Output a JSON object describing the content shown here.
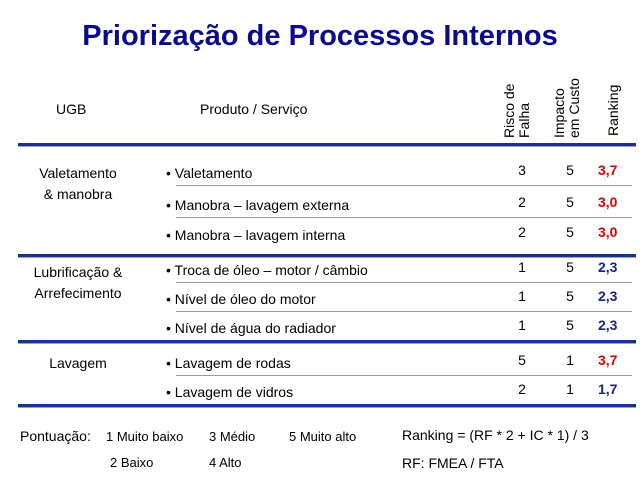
{
  "title": "Priorização de Processos Internos",
  "headers": {
    "ugb": "UGB",
    "produto": "Produto / Serviço",
    "risco": [
      "Risco de",
      "Falha"
    ],
    "impacto": [
      "Impacto",
      "em Custo"
    ],
    "ranking": "Ranking"
  },
  "colors": {
    "title": "#0a0a8c",
    "rank_high": "#e00000",
    "rank_low": "#1a237e",
    "rule": "#1d2f8f"
  },
  "groups": [
    {
      "ugb": [
        "Valetamento",
        "& manobra"
      ],
      "items": [
        {
          "name": "• Valetamento",
          "rf": "3",
          "ic": "5",
          "ranking": "3,7",
          "level": "high"
        },
        {
          "name": "• Manobra – lavagem externa",
          "rf": "2",
          "ic": "5",
          "ranking": "3,0",
          "level": "high"
        },
        {
          "name": "• Manobra – lavagem interna",
          "rf": "2",
          "ic": "5",
          "ranking": "3,0",
          "level": "high"
        }
      ]
    },
    {
      "ugb": [
        "Lubrificação &",
        "Arrefecimento"
      ],
      "items": [
        {
          "name": "• Troca de óleo – motor / câmbio",
          "rf": "1",
          "ic": "5",
          "ranking": "2,3",
          "level": "low"
        },
        {
          "name": "• Nível de óleo do motor",
          "rf": "1",
          "ic": "5",
          "ranking": "2,3",
          "level": "low"
        },
        {
          "name": "• Nível de água do radiador",
          "rf": "1",
          "ic": "5",
          "ranking": "2,3",
          "level": "low"
        }
      ]
    },
    {
      "ugb": [
        "Lavagem"
      ],
      "items": [
        {
          "name": "• Lavagem de rodas",
          "rf": "5",
          "ic": "1",
          "ranking": "3,7",
          "level": "high"
        },
        {
          "name": "• Lavagem de vidros",
          "rf": "2",
          "ic": "1",
          "ranking": "1,7",
          "level": "low"
        }
      ]
    }
  ],
  "footer": {
    "pontuacao_label": "Pontuação:",
    "scale": [
      "1 Muito baixo",
      "2 Baixo",
      "3 Médio",
      "4 Alto",
      "5 Muito alto"
    ],
    "formula": "Ranking = (RF * 2 + IC * 1) / 3",
    "rf_source": "RF: FMEA / FTA"
  }
}
